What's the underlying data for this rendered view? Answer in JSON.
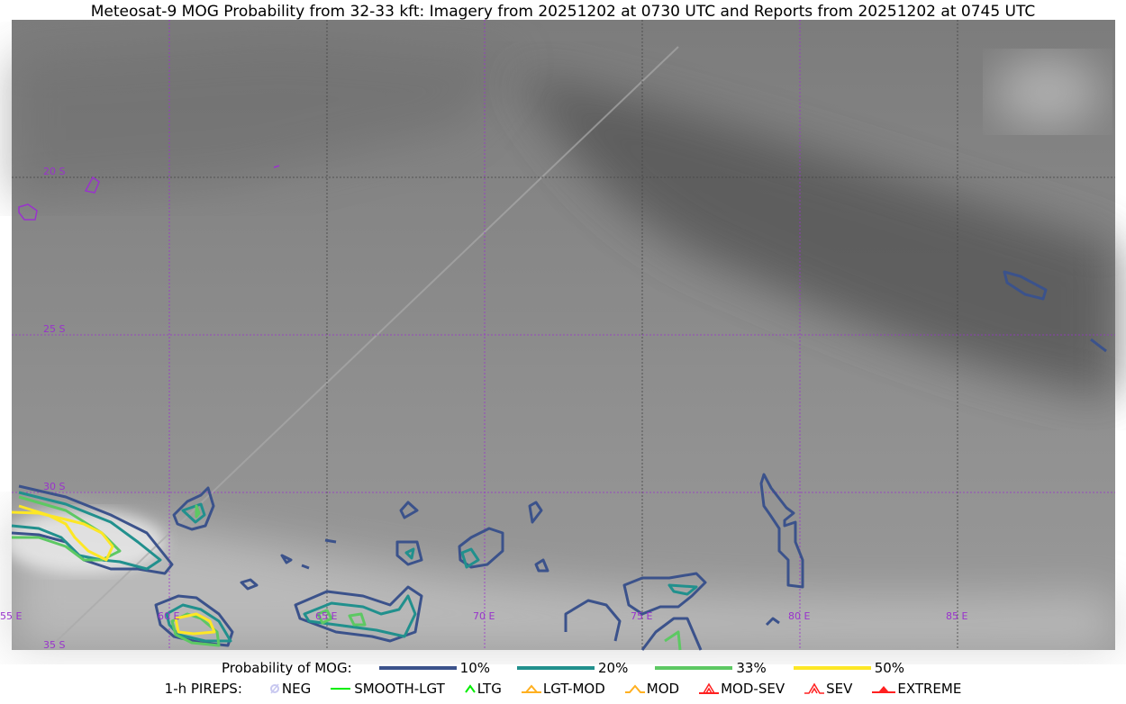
{
  "title": "Meteosat-9 MOG Probability from 32-33 kft: Imagery from 20251202 at 0730 UTC and Reports from 20251202 at 0745 UTC",
  "map": {
    "lat_labels": [
      "20 S",
      "25 S",
      "30 S",
      "35 S"
    ],
    "lon_labels": [
      "55 E",
      "60 E",
      "65 E",
      "70 E",
      "75 E",
      "80 E",
      "85 E"
    ],
    "grid_color": "#9933cc"
  },
  "legend": {
    "prob_label": "Probability of MOG:",
    "levels": [
      {
        "label": "10%",
        "color": "#3b528b"
      },
      {
        "label": "20%",
        "color": "#21908d"
      },
      {
        "label": "33%",
        "color": "#5dc863"
      },
      {
        "label": "50%",
        "color": "#fde725"
      }
    ],
    "pirep_label": "1-h PIREPS:",
    "pireps": [
      {
        "label": "NEG",
        "icon": "neg-circle-icon",
        "color": "#c8c8f0"
      },
      {
        "label": "SMOOTH-LGT",
        "icon": "line-icon",
        "color": "#00ee00"
      },
      {
        "label": "LTG",
        "icon": "caret-icon",
        "color": "#00ee00"
      },
      {
        "label": "LGT-MOD",
        "icon": "caret-bar-icon",
        "color": "#ffb020"
      },
      {
        "label": "MOD",
        "icon": "caret-icon",
        "color": "#ffb020"
      },
      {
        "label": "MOD-SEV",
        "icon": "double-caret-bar-icon",
        "color": "#ff2020"
      },
      {
        "label": "SEV",
        "icon": "double-caret-icon",
        "color": "#ff2020"
      },
      {
        "label": "EXTREME",
        "icon": "filled-triangle-icon",
        "color": "#ff2020"
      }
    ]
  }
}
